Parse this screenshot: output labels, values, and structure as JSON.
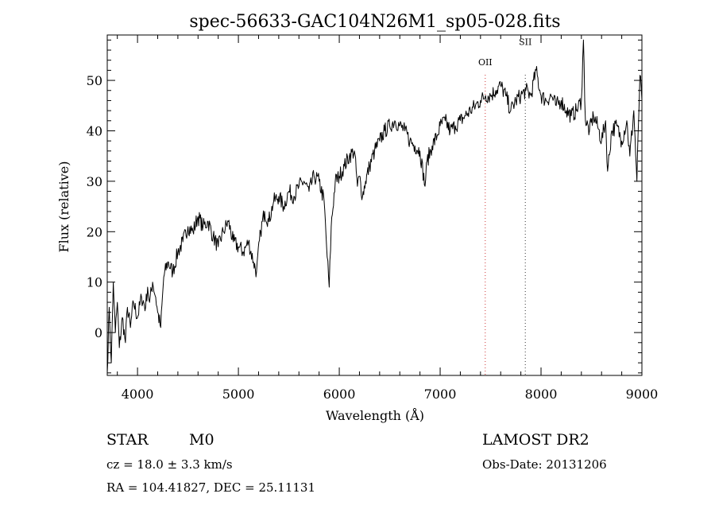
{
  "chart_data": {
    "type": "line",
    "title": "spec-56633-GAC104N26M1_sp05-028.fits",
    "xlabel": "Wavelength (Å)",
    "ylabel": "Flux (relative)",
    "xlim": [
      3700,
      9000
    ],
    "ylim": [
      -8.5,
      59
    ],
    "x_ticks": [
      4000,
      5000,
      6000,
      7000,
      8000,
      9000
    ],
    "y_ticks": [
      0,
      10,
      20,
      30,
      40,
      50
    ],
    "grid": false,
    "line_color": "#000000",
    "series": [
      {
        "values": [
          [
            3700,
            -8
          ],
          [
            3720,
            5
          ],
          [
            3740,
            -6
          ],
          [
            3760,
            10
          ],
          [
            3780,
            0
          ],
          [
            3800,
            6
          ],
          [
            3820,
            -3
          ],
          [
            3850,
            3
          ],
          [
            3880,
            -2
          ],
          [
            3900,
            5
          ],
          [
            3930,
            1
          ],
          [
            3960,
            6
          ],
          [
            4000,
            3
          ],
          [
            4040,
            7
          ],
          [
            4080,
            5
          ],
          [
            4100,
            9
          ],
          [
            4120,
            6
          ],
          [
            4150,
            10
          ],
          [
            4180,
            7
          ],
          [
            4200,
            4
          ],
          [
            4230,
            1
          ],
          [
            4260,
            11
          ],
          [
            4300,
            14
          ],
          [
            4350,
            12
          ],
          [
            4400,
            16
          ],
          [
            4450,
            18
          ],
          [
            4500,
            21
          ],
          [
            4550,
            20
          ],
          [
            4600,
            23
          ],
          [
            4650,
            21
          ],
          [
            4700,
            22
          ],
          [
            4750,
            19
          ],
          [
            4800,
            17
          ],
          [
            4850,
            20
          ],
          [
            4900,
            22
          ],
          [
            4950,
            18
          ],
          [
            5000,
            17
          ],
          [
            5050,
            16
          ],
          [
            5100,
            18
          ],
          [
            5150,
            14
          ],
          [
            5180,
            12
          ],
          [
            5220,
            20
          ],
          [
            5260,
            24
          ],
          [
            5300,
            22
          ],
          [
            5350,
            26
          ],
          [
            5400,
            27
          ],
          [
            5450,
            25
          ],
          [
            5500,
            28
          ],
          [
            5550,
            27
          ],
          [
            5600,
            29
          ],
          [
            5650,
            30
          ],
          [
            5700,
            28
          ],
          [
            5750,
            31
          ],
          [
            5800,
            30
          ],
          [
            5850,
            26
          ],
          [
            5880,
            15
          ],
          [
            5900,
            9
          ],
          [
            5920,
            21
          ],
          [
            5960,
            30
          ],
          [
            6000,
            31
          ],
          [
            6050,
            33
          ],
          [
            6100,
            35
          ],
          [
            6150,
            36
          ],
          [
            6180,
            29
          ],
          [
            6200,
            31
          ],
          [
            6230,
            27
          ],
          [
            6260,
            30
          ],
          [
            6300,
            33
          ],
          [
            6350,
            36
          ],
          [
            6400,
            38
          ],
          [
            6450,
            40
          ],
          [
            6500,
            41
          ],
          [
            6550,
            42
          ],
          [
            6600,
            41
          ],
          [
            6650,
            40
          ],
          [
            6700,
            38
          ],
          [
            6750,
            37
          ],
          [
            6800,
            36
          ],
          [
            6850,
            29
          ],
          [
            6870,
            34
          ],
          [
            6920,
            37
          ],
          [
            6970,
            39
          ],
          [
            7000,
            41
          ],
          [
            7050,
            42
          ],
          [
            7100,
            40
          ],
          [
            7150,
            41
          ],
          [
            7200,
            42
          ],
          [
            7250,
            43
          ],
          [
            7300,
            44
          ],
          [
            7350,
            45
          ],
          [
            7400,
            46
          ],
          [
            7450,
            47
          ],
          [
            7500,
            47
          ],
          [
            7550,
            48
          ],
          [
            7600,
            49
          ],
          [
            7650,
            47
          ],
          [
            7700,
            44
          ],
          [
            7750,
            46
          ],
          [
            7800,
            47
          ],
          [
            7850,
            48
          ],
          [
            7900,
            47
          ],
          [
            7950,
            52
          ],
          [
            8000,
            47
          ],
          [
            8050,
            46
          ],
          [
            8100,
            47
          ],
          [
            8150,
            45
          ],
          [
            8200,
            46
          ],
          [
            8250,
            44
          ],
          [
            8300,
            43
          ],
          [
            8350,
            44
          ],
          [
            8400,
            46
          ],
          [
            8420,
            58
          ],
          [
            8440,
            42
          ],
          [
            8480,
            40
          ],
          [
            8520,
            43
          ],
          [
            8560,
            41
          ],
          [
            8600,
            38
          ],
          [
            8640,
            42
          ],
          [
            8660,
            32
          ],
          [
            8700,
            40
          ],
          [
            8750,
            41
          ],
          [
            8800,
            38
          ],
          [
            8850,
            42
          ],
          [
            8880,
            35
          ],
          [
            8920,
            44
          ],
          [
            8950,
            30
          ],
          [
            8980,
            51
          ],
          [
            9000,
            46
          ]
        ]
      }
    ],
    "annotations": [
      {
        "text": "OII",
        "x": 7447,
        "y": 53
      },
      {
        "text": "SII",
        "x": 7844,
        "y": 57
      }
    ],
    "marker_lines": [
      {
        "x": 7447,
        "color": "#cc3333"
      },
      {
        "x": 7844,
        "color": "#333333"
      }
    ]
  },
  "info": {
    "object_class": "STAR",
    "subclass": "M0",
    "cz": "cz = 18.0 ± 3.3 km/s",
    "coords": "RA = 104.41827, DEC =  25.11131",
    "survey": "LAMOST DR2",
    "obs_date": "Obs-Date: 20131206"
  }
}
